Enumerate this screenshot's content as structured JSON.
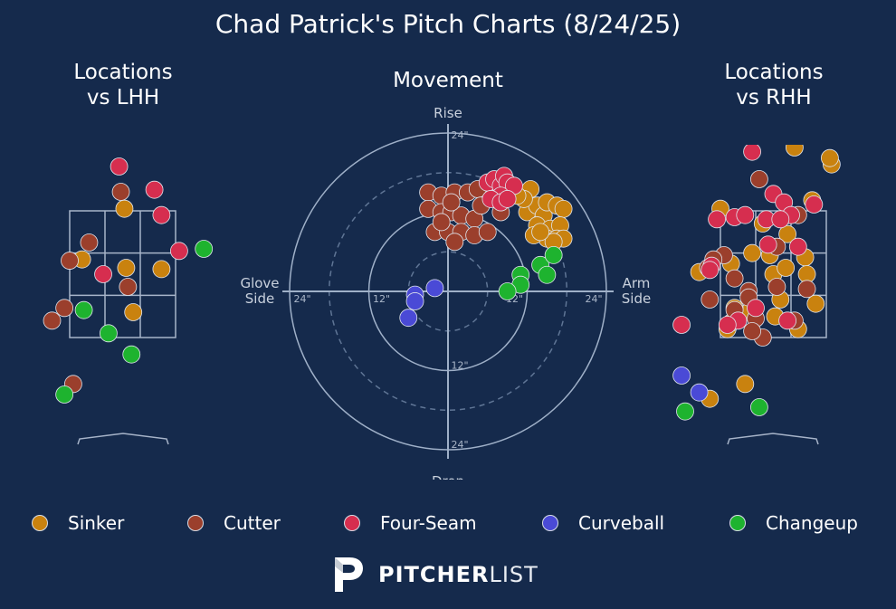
{
  "title": "Chad Patrick's Pitch Charts (8/24/25)",
  "panels": {
    "lhh_title": "Locations\nvs LHH",
    "movement_title": "Movement",
    "rhh_title": "Locations\nvs RHH"
  },
  "movement_labels": {
    "top": "Rise",
    "bottom": "Drop",
    "left": "Glove\nSide",
    "right": "Arm\nSide",
    "ring_labels": [
      "24\"",
      "12\""
    ]
  },
  "colors": {
    "background": "#152a4c",
    "Sinker": "#c9820f",
    "Cutter": "#9b3f2c",
    "Four-Seam": "#d62e4f",
    "Curveball": "#4a4ad6",
    "Changeup": "#1eb32f"
  },
  "legend": [
    "Sinker",
    "Cutter",
    "Four-Seam",
    "Curveball",
    "Changeup"
  ],
  "chart_data": [
    {
      "type": "scatter",
      "title": "Movement",
      "xlabel": "Glove Side / Arm Side",
      "ylabel": "Drop / Rise",
      "units": "inches",
      "xlim": [
        -24,
        24
      ],
      "ylim": [
        -24,
        24
      ],
      "rings": [
        6,
        12,
        18,
        24
      ],
      "series": [
        {
          "name": "Sinker",
          "points": [
            [
              12,
              12
            ],
            [
              13.5,
              13
            ],
            [
              14.5,
              11.5
            ],
            [
              15,
              13.5
            ],
            [
              16.5,
              13
            ],
            [
              17.5,
              12.5
            ],
            [
              13.5,
              10
            ],
            [
              15.5,
              9.5
            ],
            [
              17,
              10
            ],
            [
              15,
              8
            ],
            [
              16.5,
              8
            ],
            [
              17.5,
              8
            ],
            [
              13,
              8.5
            ],
            [
              12.5,
              15.5
            ],
            [
              11.5,
              14
            ],
            [
              10.5,
              14.5
            ],
            [
              16,
              7.5
            ],
            [
              14,
              9
            ]
          ]
        },
        {
          "name": "Cutter",
          "points": [
            [
              -3,
              15
            ],
            [
              -1,
              14.5
            ],
            [
              1,
              15
            ],
            [
              3,
              15
            ],
            [
              4.5,
              15.5
            ],
            [
              -3,
              12.5
            ],
            [
              -1,
              12
            ],
            [
              0.5,
              12
            ],
            [
              2,
              11.5
            ],
            [
              4,
              11
            ],
            [
              -2,
              9
            ],
            [
              0,
              9
            ],
            [
              2,
              9
            ],
            [
              4,
              8.5
            ],
            [
              6,
              9
            ],
            [
              8,
              12
            ],
            [
              7,
              14
            ],
            [
              1,
              7.5
            ],
            [
              -1,
              10.5
            ],
            [
              0.5,
              13.5
            ],
            [
              5,
              13
            ]
          ]
        },
        {
          "name": "Four-Seam",
          "points": [
            [
              6,
              16.5
            ],
            [
              7,
              17
            ],
            [
              8,
              16
            ],
            [
              8.5,
              17.5
            ],
            [
              9,
              16.5
            ],
            [
              10,
              16
            ],
            [
              8,
              14.5
            ],
            [
              6.5,
              14
            ],
            [
              8,
              13.5
            ],
            [
              9,
              14
            ]
          ]
        },
        {
          "name": "Curveball",
          "points": [
            [
              -2,
              0.5
            ],
            [
              -5,
              -0.5
            ],
            [
              -5,
              -1.5
            ],
            [
              -6,
              -4
            ]
          ]
        },
        {
          "name": "Changeup",
          "points": [
            [
              11,
              2.5
            ],
            [
              11,
              1
            ],
            [
              9,
              0
            ],
            [
              14,
              4
            ],
            [
              15,
              2.5
            ],
            [
              16,
              5.5
            ]
          ]
        }
      ]
    },
    {
      "type": "scatter",
      "title": "Locations vs LHH",
      "units": "zone-relative",
      "strike_zone": {
        "cols": 3,
        "rows": 3
      },
      "series": [
        {
          "name": "Sinker",
          "points": [
            [
              1.55,
              -0.05
            ],
            [
              0.35,
              1.15
            ],
            [
              1.6,
              1.35
            ],
            [
              2.6,
              1.38
            ],
            [
              1.8,
              2.4
            ]
          ]
        },
        {
          "name": "Cutter",
          "points": [
            [
              1.45,
              -0.45
            ],
            [
              0.55,
              0.75
            ],
            [
              0.0,
              1.18
            ],
            [
              1.65,
              1.8
            ],
            [
              -0.15,
              2.3
            ],
            [
              -0.5,
              2.6
            ],
            [
              0.1,
              4.1
            ]
          ]
        },
        {
          "name": "Four-Seam",
          "points": [
            [
              1.4,
              -1.05
            ],
            [
              2.4,
              -0.5
            ],
            [
              2.6,
              0.1
            ],
            [
              3.1,
              0.95
            ],
            [
              0.95,
              1.5
            ]
          ]
        },
        {
          "name": "Curveball",
          "points": []
        },
        {
          "name": "Changeup",
          "points": [
            [
              3.8,
              0.9
            ],
            [
              0.4,
              2.35
            ],
            [
              1.1,
              2.9
            ],
            [
              1.75,
              3.4
            ],
            [
              -0.15,
              4.35
            ]
          ]
        }
      ]
    },
    {
      "type": "scatter",
      "title": "Locations vs RHH",
      "units": "zone-relative",
      "strike_zone": {
        "cols": 3,
        "rows": 3
      },
      "series": [
        {
          "name": "Sinker",
          "points": [
            [
              2.1,
              -1.5
            ],
            [
              3.15,
              -1.1
            ],
            [
              3.1,
              -1.25
            ],
            [
              0.0,
              -0.05
            ],
            [
              1.2,
              0.3
            ],
            [
              1.9,
              0.1
            ],
            [
              1.9,
              0.55
            ],
            [
              2.6,
              -0.25
            ],
            [
              0.9,
              1.0
            ],
            [
              1.4,
              1.05
            ],
            [
              0.3,
              1.25
            ],
            [
              1.5,
              1.5
            ],
            [
              1.85,
              1.35
            ],
            [
              2.4,
              1.1
            ],
            [
              2.45,
              1.5
            ],
            [
              -0.6,
              1.45
            ],
            [
              1.7,
              2.1
            ],
            [
              2.7,
              2.2
            ],
            [
              1.55,
              2.5
            ],
            [
              0.8,
              2.4
            ],
            [
              0.4,
              2.3
            ],
            [
              0.2,
              2.8
            ],
            [
              0.3,
              2.65
            ],
            [
              2.2,
              2.8
            ],
            [
              0.7,
              4.1
            ],
            [
              -0.3,
              4.45
            ]
          ]
        },
        {
          "name": "Cutter",
          "points": [
            [
              1.1,
              -0.75
            ],
            [
              2.2,
              0.1
            ],
            [
              0.1,
              1.05
            ],
            [
              1.6,
              0.85
            ],
            [
              0.4,
              1.6
            ],
            [
              1.6,
              1.8
            ],
            [
              0.8,
              1.9
            ],
            [
              0.8,
              2.05
            ],
            [
              0.4,
              2.35
            ],
            [
              1.0,
              2.55
            ],
            [
              2.1,
              2.6
            ],
            [
              -0.3,
              2.1
            ],
            [
              -0.35,
              1.35
            ],
            [
              -0.2,
              1.15
            ],
            [
              1.2,
              3.0
            ],
            [
              0.9,
              2.85
            ],
            [
              2.45,
              1.85
            ]
          ]
        },
        {
          "name": "Four-Seam",
          "points": [
            [
              0.9,
              -1.4
            ],
            [
              1.5,
              -0.4
            ],
            [
              1.8,
              -0.2
            ],
            [
              2.65,
              -0.15
            ],
            [
              2.0,
              0.1
            ],
            [
              1.3,
              0.2
            ],
            [
              1.7,
              0.2
            ],
            [
              0.4,
              0.15
            ],
            [
              0.7,
              0.1
            ],
            [
              -0.1,
              0.2
            ],
            [
              1.35,
              0.8
            ],
            [
              2.2,
              0.85
            ],
            [
              -0.25,
              1.3
            ],
            [
              -0.3,
              1.4
            ],
            [
              1.9,
              2.6
            ],
            [
              -1.1,
              2.7
            ],
            [
              0.5,
              2.6
            ],
            [
              0.2,
              2.7
            ],
            [
              1.0,
              2.3
            ]
          ]
        },
        {
          "name": "Curveball",
          "points": [
            [
              -1.1,
              3.9
            ],
            [
              -0.6,
              4.3
            ]
          ]
        },
        {
          "name": "Changeup",
          "points": [
            [
              -1.0,
              4.75
            ],
            [
              1.1,
              4.65
            ]
          ]
        }
      ]
    }
  ],
  "logo": {
    "bold": "PITCHER",
    "light": "LIST"
  }
}
